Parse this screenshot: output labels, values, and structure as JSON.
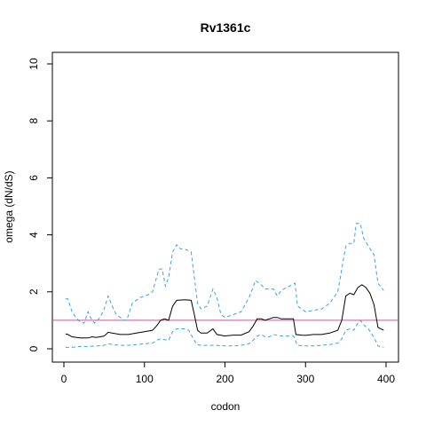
{
  "chart_data": {
    "type": "line",
    "title": "Rv1361c",
    "xlabel": "codon",
    "ylabel": "omega (dN/dS)",
    "xlim": [
      0,
      400
    ],
    "ylim": [
      0,
      10
    ],
    "x_ticks": [
      "0",
      "100",
      "200",
      "300",
      "400"
    ],
    "y_ticks": [
      "0",
      "2",
      "4",
      "6",
      "8",
      "10"
    ],
    "grid": false,
    "reference_line": {
      "y": 1,
      "color": "#c9579a"
    },
    "colors": {
      "estimate": "#000000",
      "interval": "#3aa3dc"
    },
    "series": [
      {
        "role": "estimate",
        "points": [
          [
            2,
            0.52
          ],
          [
            5,
            0.5
          ],
          [
            10,
            0.42
          ],
          [
            20,
            0.38
          ],
          [
            30,
            0.38
          ],
          [
            35,
            0.42
          ],
          [
            40,
            0.4
          ],
          [
            50,
            0.45
          ],
          [
            55,
            0.58
          ],
          [
            60,
            0.55
          ],
          [
            70,
            0.5
          ],
          [
            80,
            0.5
          ],
          [
            90,
            0.55
          ],
          [
            100,
            0.6
          ],
          [
            110,
            0.65
          ],
          [
            115,
            0.8
          ],
          [
            120,
            1.0
          ],
          [
            125,
            1.05
          ],
          [
            130,
            1.0
          ],
          [
            135,
            1.5
          ],
          [
            140,
            1.7
          ],
          [
            150,
            1.72
          ],
          [
            158,
            1.7
          ],
          [
            162,
            1.2
          ],
          [
            166,
            0.65
          ],
          [
            170,
            0.55
          ],
          [
            178,
            0.55
          ],
          [
            185,
            0.7
          ],
          [
            190,
            0.5
          ],
          [
            200,
            0.45
          ],
          [
            210,
            0.48
          ],
          [
            220,
            0.48
          ],
          [
            230,
            0.6
          ],
          [
            235,
            0.8
          ],
          [
            240,
            1.05
          ],
          [
            245,
            1.05
          ],
          [
            250,
            1.0
          ],
          [
            255,
            1.05
          ],
          [
            260,
            1.1
          ],
          [
            265,
            1.1
          ],
          [
            270,
            1.05
          ],
          [
            275,
            1.05
          ],
          [
            285,
            1.05
          ],
          [
            288,
            0.5
          ],
          [
            295,
            0.48
          ],
          [
            300,
            0.47
          ],
          [
            310,
            0.5
          ],
          [
            320,
            0.5
          ],
          [
            330,
            0.55
          ],
          [
            340,
            0.65
          ],
          [
            345,
            1.0
          ],
          [
            350,
            1.85
          ],
          [
            355,
            1.95
          ],
          [
            360,
            1.9
          ],
          [
            365,
            2.15
          ],
          [
            370,
            2.25
          ],
          [
            375,
            2.15
          ],
          [
            380,
            1.95
          ],
          [
            385,
            1.55
          ],
          [
            390,
            0.75
          ],
          [
            397,
            0.65
          ]
        ]
      },
      {
        "role": "upper",
        "points": [
          [
            2,
            1.75
          ],
          [
            5,
            1.75
          ],
          [
            10,
            1.3
          ],
          [
            15,
            1.1
          ],
          [
            20,
            0.95
          ],
          [
            25,
            0.9
          ],
          [
            30,
            1.3
          ],
          [
            33,
            1.1
          ],
          [
            38,
            0.9
          ],
          [
            45,
            1.1
          ],
          [
            50,
            1.4
          ],
          [
            55,
            1.85
          ],
          [
            60,
            1.5
          ],
          [
            65,
            1.2
          ],
          [
            70,
            1.1
          ],
          [
            75,
            1.0
          ],
          [
            78,
            1.0
          ],
          [
            85,
            1.6
          ],
          [
            95,
            1.8
          ],
          [
            105,
            1.9
          ],
          [
            110,
            2.0
          ],
          [
            118,
            2.8
          ],
          [
            122,
            2.8
          ],
          [
            126,
            2.2
          ],
          [
            130,
            2.5
          ],
          [
            135,
            3.4
          ],
          [
            140,
            3.65
          ],
          [
            145,
            3.5
          ],
          [
            150,
            3.5
          ],
          [
            158,
            3.4
          ],
          [
            162,
            2.5
          ],
          [
            166,
            1.6
          ],
          [
            170,
            1.4
          ],
          [
            178,
            1.5
          ],
          [
            185,
            2.1
          ],
          [
            190,
            1.8
          ],
          [
            195,
            1.2
          ],
          [
            200,
            1.1
          ],
          [
            210,
            1.2
          ],
          [
            220,
            1.3
          ],
          [
            230,
            1.8
          ],
          [
            238,
            2.4
          ],
          [
            243,
            2.3
          ],
          [
            250,
            2.1
          ],
          [
            260,
            2.1
          ],
          [
            265,
            1.85
          ],
          [
            270,
            2.05
          ],
          [
            280,
            2.2
          ],
          [
            287,
            2.3
          ],
          [
            290,
            1.5
          ],
          [
            295,
            1.4
          ],
          [
            300,
            1.3
          ],
          [
            310,
            1.35
          ],
          [
            320,
            1.4
          ],
          [
            330,
            1.6
          ],
          [
            340,
            2.0
          ],
          [
            345,
            2.8
          ],
          [
            350,
            3.6
          ],
          [
            355,
            3.7
          ],
          [
            360,
            3.7
          ],
          [
            363,
            4.4
          ],
          [
            368,
            4.4
          ],
          [
            372,
            3.9
          ],
          [
            378,
            3.6
          ],
          [
            385,
            3.3
          ],
          [
            390,
            2.3
          ],
          [
            397,
            2.05
          ]
        ]
      },
      {
        "role": "lower",
        "points": [
          [
            2,
            0.05
          ],
          [
            10,
            0.05
          ],
          [
            20,
            0.08
          ],
          [
            30,
            0.08
          ],
          [
            40,
            0.1
          ],
          [
            50,
            0.12
          ],
          [
            55,
            0.18
          ],
          [
            60,
            0.15
          ],
          [
            70,
            0.12
          ],
          [
            80,
            0.12
          ],
          [
            90,
            0.15
          ],
          [
            100,
            0.18
          ],
          [
            110,
            0.2
          ],
          [
            115,
            0.3
          ],
          [
            120,
            0.35
          ],
          [
            125,
            0.32
          ],
          [
            130,
            0.3
          ],
          [
            135,
            0.6
          ],
          [
            140,
            0.7
          ],
          [
            150,
            0.7
          ],
          [
            155,
            0.65
          ],
          [
            160,
            0.4
          ],
          [
            165,
            0.15
          ],
          [
            170,
            0.12
          ],
          [
            180,
            0.12
          ],
          [
            190,
            0.12
          ],
          [
            200,
            0.1
          ],
          [
            210,
            0.1
          ],
          [
            220,
            0.12
          ],
          [
            230,
            0.18
          ],
          [
            235,
            0.3
          ],
          [
            240,
            0.45
          ],
          [
            245,
            0.5
          ],
          [
            250,
            0.42
          ],
          [
            255,
            0.42
          ],
          [
            260,
            0.5
          ],
          [
            270,
            0.45
          ],
          [
            280,
            0.45
          ],
          [
            285,
            0.45
          ],
          [
            290,
            0.12
          ],
          [
            300,
            0.1
          ],
          [
            310,
            0.1
          ],
          [
            320,
            0.12
          ],
          [
            330,
            0.15
          ],
          [
            340,
            0.2
          ],
          [
            345,
            0.35
          ],
          [
            350,
            0.65
          ],
          [
            355,
            0.7
          ],
          [
            360,
            0.65
          ],
          [
            365,
            0.9
          ],
          [
            368,
            1.0
          ],
          [
            372,
            0.85
          ],
          [
            378,
            0.7
          ],
          [
            385,
            0.4
          ],
          [
            390,
            0.1
          ],
          [
            397,
            0.05
          ]
        ]
      }
    ]
  }
}
